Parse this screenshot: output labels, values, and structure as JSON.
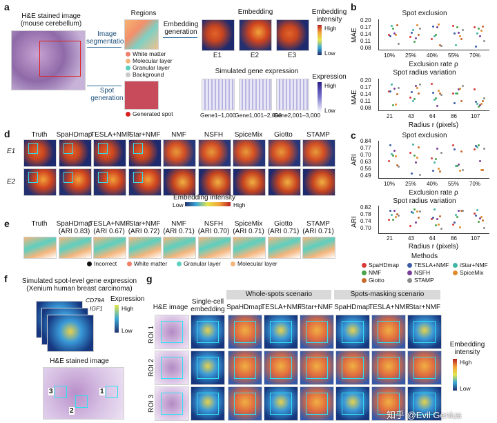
{
  "panels": {
    "a": "a",
    "b": "b",
    "c": "c",
    "d": "d",
    "e": "e",
    "f": "f",
    "g": "g"
  },
  "a": {
    "he_title_line1": "H&E stained image",
    "he_title_line2": "(mouse cerebellum)",
    "image_seg_line1": "Image",
    "image_seg_line2": "segmentation",
    "spot_gen_line1": "Spot",
    "spot_gen_line2": "generation",
    "regions_title": "Regions",
    "regions": [
      "White matter",
      "Molecular layer",
      "Granular layer",
      "Background"
    ],
    "region_colors": [
      "#f07f6c",
      "#f4b57c",
      "#5ccfc0",
      "#c9c9c9"
    ],
    "generated_spot": "Generated spot",
    "embedding_generation_line1": "Embedding",
    "embedding_generation_line2": "generation",
    "embedding_title": "Embedding",
    "embedding_labels": [
      "E1",
      "E2",
      "E3"
    ],
    "embedding_intensity_line1": "Embedding",
    "embedding_intensity_line2": "intensity",
    "high": "High",
    "low": "Low",
    "simulated_title": "Simulated gene expression",
    "expression": "Expression",
    "gene_labels": [
      "Gene1–1,000",
      "Gene1,001–2,000",
      "Gene2,001–3,000"
    ]
  },
  "b": {
    "top_title": "Spot exclusion",
    "top_ylabel": "MAE",
    "top_yticks": [
      "0.20",
      "0.17",
      "0.14",
      "0.11",
      "0.08"
    ],
    "top_xticks": [
      "10%",
      "25%",
      "40%",
      "55%",
      "70%"
    ],
    "top_xlabel": "Exclusion rate ρ",
    "bottom_title": "Spot radius variation",
    "bottom_ylabel": "MAE",
    "bottom_yticks": [
      "0.20",
      "0.17",
      "0.14",
      "0.11",
      "0.08"
    ],
    "bottom_xticks": [
      "21",
      "43",
      "64",
      "86",
      "107"
    ],
    "bottom_xlabel": "Radius r (pixels)"
  },
  "c": {
    "top_title": "Spot exclusion",
    "top_ylabel": "ARI",
    "top_yticks": [
      "0.84",
      "0.77",
      "0.70",
      "0.63",
      "0.56",
      "0.49"
    ],
    "top_xticks": [
      "10%",
      "25%",
      "40%",
      "55%",
      "70%"
    ],
    "top_xlabel": "Exclusion rate ρ",
    "bottom_title": "Spot radius variation",
    "bottom_ylabel": "ARI",
    "bottom_yticks": [
      "0.82",
      "0.78",
      "0.74",
      "0.70"
    ],
    "bottom_xticks": [
      "21",
      "43",
      "64",
      "86",
      "107"
    ],
    "bottom_xlabel": "Radius r (pixels)"
  },
  "methods": {
    "title": "Methods",
    "items": [
      {
        "name": "SpaHDmap",
        "color": "#d83a3a"
      },
      {
        "name": "TESLA+NMF",
        "color": "#3b5ba7"
      },
      {
        "name": "iStar+NMF",
        "color": "#3fb5a6"
      },
      {
        "name": "NMF",
        "color": "#4aa34a"
      },
      {
        "name": "NSFH",
        "color": "#7a3f9a"
      },
      {
        "name": "SpiceMix",
        "color": "#e08b2a"
      },
      {
        "name": "Giotto",
        "color": "#c86a2a"
      },
      {
        "name": "STAMP",
        "color": "#8c8c8c"
      }
    ]
  },
  "d": {
    "columns": [
      "Truth",
      "SpaHDmap",
      "TESLA+NMF",
      "iStar+NMF",
      "NMF",
      "NSFH",
      "SpiceMix",
      "Giotto",
      "STAMP"
    ],
    "rows": [
      "E1",
      "E2"
    ],
    "cbar_label": "Embedding intensity",
    "low": "Low",
    "high": "High"
  },
  "e": {
    "columns": [
      {
        "name": "Truth",
        "ari": ""
      },
      {
        "name": "SpaHDmap",
        "ari": "(ARI 0.83)"
      },
      {
        "name": "TESLA+NMF",
        "ari": "(ARI 0.67)"
      },
      {
        "name": "iStar+NMF",
        "ari": "(ARI 0.72)"
      },
      {
        "name": "NMF",
        "ari": "(ARI 0.71)"
      },
      {
        "name": "NSFH",
        "ari": "(ARI 0.70)"
      },
      {
        "name": "SpiceMix",
        "ari": "(ARI 0.71)"
      },
      {
        "name": "Giotto",
        "ari": "(ARI 0.71)"
      },
      {
        "name": "STAMP",
        "ari": "(ARI 0.71)"
      }
    ],
    "legend": [
      {
        "name": "Incorrect",
        "color": "#111111"
      },
      {
        "name": "White matter",
        "color": "#f07f6c"
      },
      {
        "name": "Granular layer",
        "color": "#5ccfc0"
      },
      {
        "name": "Molecular layer",
        "color": "#f4b57c"
      }
    ]
  },
  "f": {
    "title_line1": "Simulated spot-level gene expression",
    "title_line2": "(Xenium human breast carcinoma)",
    "gene1": "CD79A",
    "gene2": "IGF1",
    "expression": "Expression",
    "high": "High",
    "low": "Low",
    "he_title": "H&E stained image",
    "roi_numbers": [
      "1",
      "2",
      "3"
    ]
  },
  "g": {
    "col_he": "H&E image",
    "col_sc_line1": "Single-cell",
    "col_sc_line2": "embedding",
    "whole_hdr": "Whole-spots scenario",
    "mask_hdr": "Spots-masking scenario",
    "methods": [
      "SpaHDmap",
      "TESLA+NMF",
      "iStar+NMF",
      "SpaHDmap",
      "TESLA+NMF",
      "iStar+NMF"
    ],
    "rois": [
      "ROI 1",
      "ROI 2",
      "ROI 3"
    ],
    "cbar_line1": "Embedding",
    "cbar_line2": "intensity",
    "high": "High",
    "low": "Low"
  },
  "watermark": "知乎 @Evil Genius"
}
